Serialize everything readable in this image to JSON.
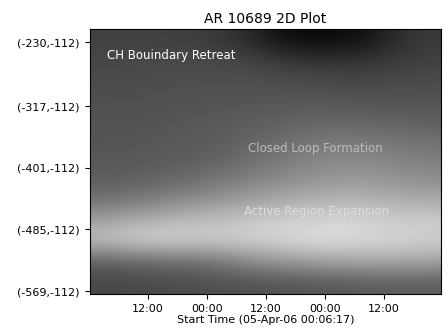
{
  "chart_data": {
    "type": "heatmap",
    "title": "AR 10689 2D Plot",
    "xlabel": "Start Time (05-Apr-06 00:06:17)",
    "xlim": [
      0,
      71.6
    ],
    "xticks": [
      {
        "value": 11.9,
        "label": "12:00"
      },
      {
        "value": 23.9,
        "label": "00:00"
      },
      {
        "value": 35.9,
        "label": "12:00"
      },
      {
        "value": 47.9,
        "label": "00:00"
      },
      {
        "value": 59.9,
        "label": "12:00"
      }
    ],
    "ylim": [
      -573,
      -211
    ],
    "yticks": [
      {
        "value": -569,
        "label": "(-569,-112)"
      },
      {
        "value": -485,
        "label": "(-485,-112)"
      },
      {
        "value": -401,
        "label": "(-401,-112)"
      },
      {
        "value": -317,
        "label": "(-317,-112)"
      },
      {
        "value": -230,
        "label": "(-230,-112)"
      }
    ],
    "zlim": [
      0,
      255
    ],
    "cells": [
      [
        70,
        72,
        74,
        76,
        78,
        80,
        82,
        84,
        86,
        88,
        90,
        90
      ],
      [
        95,
        100,
        105,
        110,
        120,
        140,
        150,
        160,
        165,
        170,
        170,
        165
      ],
      [
        200,
        215,
        220,
        215,
        210,
        215,
        220,
        225,
        225,
        220,
        215,
        210
      ],
      [
        150,
        160,
        170,
        180,
        185,
        195,
        200,
        205,
        210,
        205,
        200,
        200
      ],
      [
        105,
        110,
        120,
        130,
        140,
        150,
        160,
        165,
        170,
        170,
        165,
        160
      ],
      [
        90,
        92,
        95,
        100,
        110,
        120,
        130,
        140,
        145,
        145,
        140,
        135
      ],
      [
        85,
        86,
        88,
        90,
        95,
        105,
        115,
        125,
        130,
        128,
        125,
        120
      ],
      [
        84,
        85,
        86,
        88,
        90,
        95,
        100,
        105,
        108,
        106,
        104,
        100
      ],
      [
        80,
        80,
        82,
        84,
        85,
        86,
        88,
        90,
        88,
        86,
        85,
        84
      ],
      [
        76,
        76,
        78,
        78,
        80,
        80,
        78,
        76,
        74,
        74,
        75,
        76
      ],
      [
        70,
        72,
        72,
        74,
        72,
        68,
        60,
        55,
        52,
        55,
        60,
        64
      ],
      [
        66,
        66,
        64,
        62,
        55,
        40,
        15,
        8,
        10,
        20,
        45,
        58
      ]
    ],
    "annotations": [
      "CH Bouindary Retreat",
      "Closed Loop Formation",
      "Active Region Expansion"
    ]
  }
}
